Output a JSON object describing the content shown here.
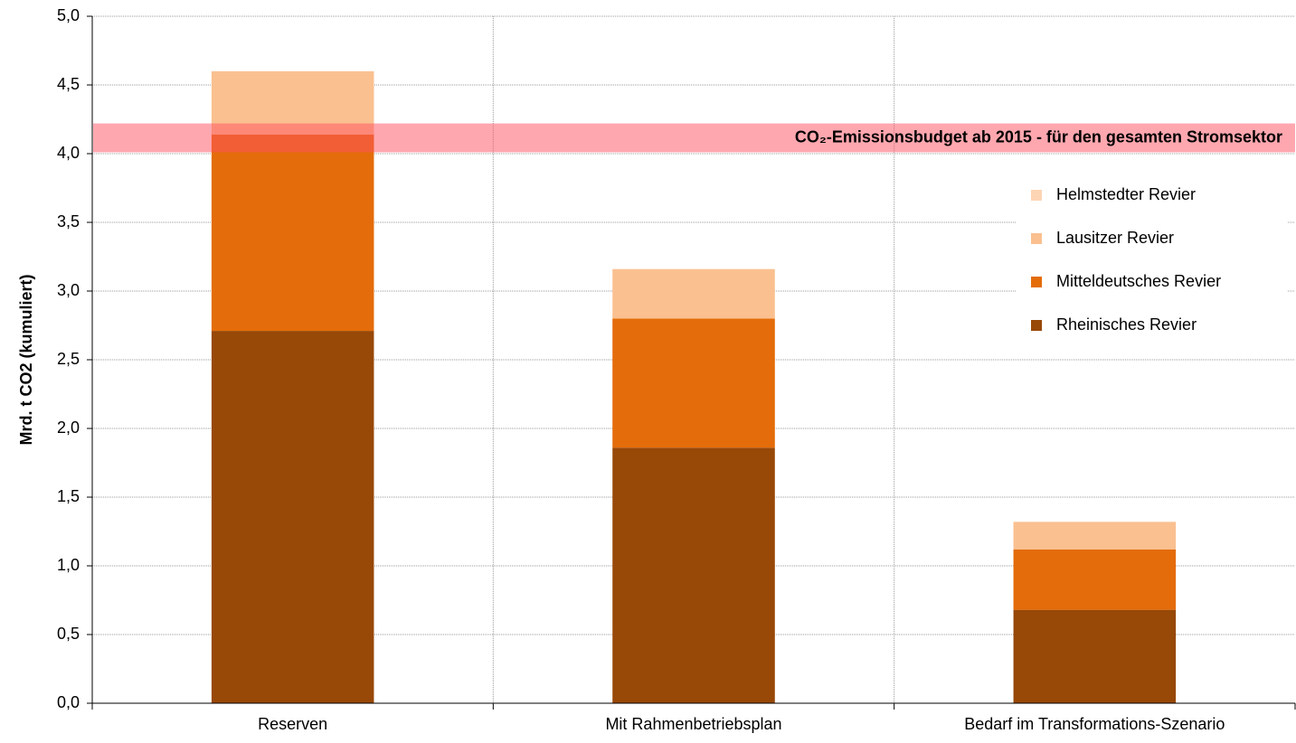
{
  "chart_data": {
    "type": "stacked_bar",
    "y_label": "Mrd. t CO2 (kumuliert)",
    "categories": [
      "Reserven",
      "Mit Rahmenbetriebsplan",
      "Bedarf im Transformations-Szenario"
    ],
    "series": [
      {
        "name": "Rheinisches Revier",
        "color": "#984807",
        "values": [
          2.71,
          1.86,
          0.68
        ]
      },
      {
        "name": "Mitteldeutsches Revier",
        "color": "#e46c0a",
        "values": [
          1.43,
          0.94,
          0.44
        ]
      },
      {
        "name": "Lausitzer Revier",
        "color": "#fac090",
        "values": [
          0.46,
          0.36,
          0.2
        ]
      },
      {
        "name": "Helmstedter Revier",
        "color": "#fcd5b5",
        "values": [
          0,
          0,
          0
        ]
      }
    ],
    "budget_band": {
      "range": [
        4.01,
        4.22
      ],
      "label": "CO₂-Emissionsbudget ab 2015 - für den gesamten Stromsektor",
      "color": "rgba(255,80,95,0.5)"
    },
    "ylim": [
      0,
      5
    ],
    "yticks": [
      {
        "value": 0,
        "label": "0,0"
      },
      {
        "value": 0.5,
        "label": "0,5"
      },
      {
        "value": 1,
        "label": "1,0"
      },
      {
        "value": 1.5,
        "label": "1,5"
      },
      {
        "value": 2,
        "label": "2,0"
      },
      {
        "value": 2.5,
        "label": "2,5"
      },
      {
        "value": 3,
        "label": "3,0"
      },
      {
        "value": 3.5,
        "label": "3,5"
      },
      {
        "value": 4,
        "label": "4,0"
      },
      {
        "value": 4.5,
        "label": "4,5"
      },
      {
        "value": 5,
        "label": "5,0"
      }
    ],
    "grid": true
  }
}
